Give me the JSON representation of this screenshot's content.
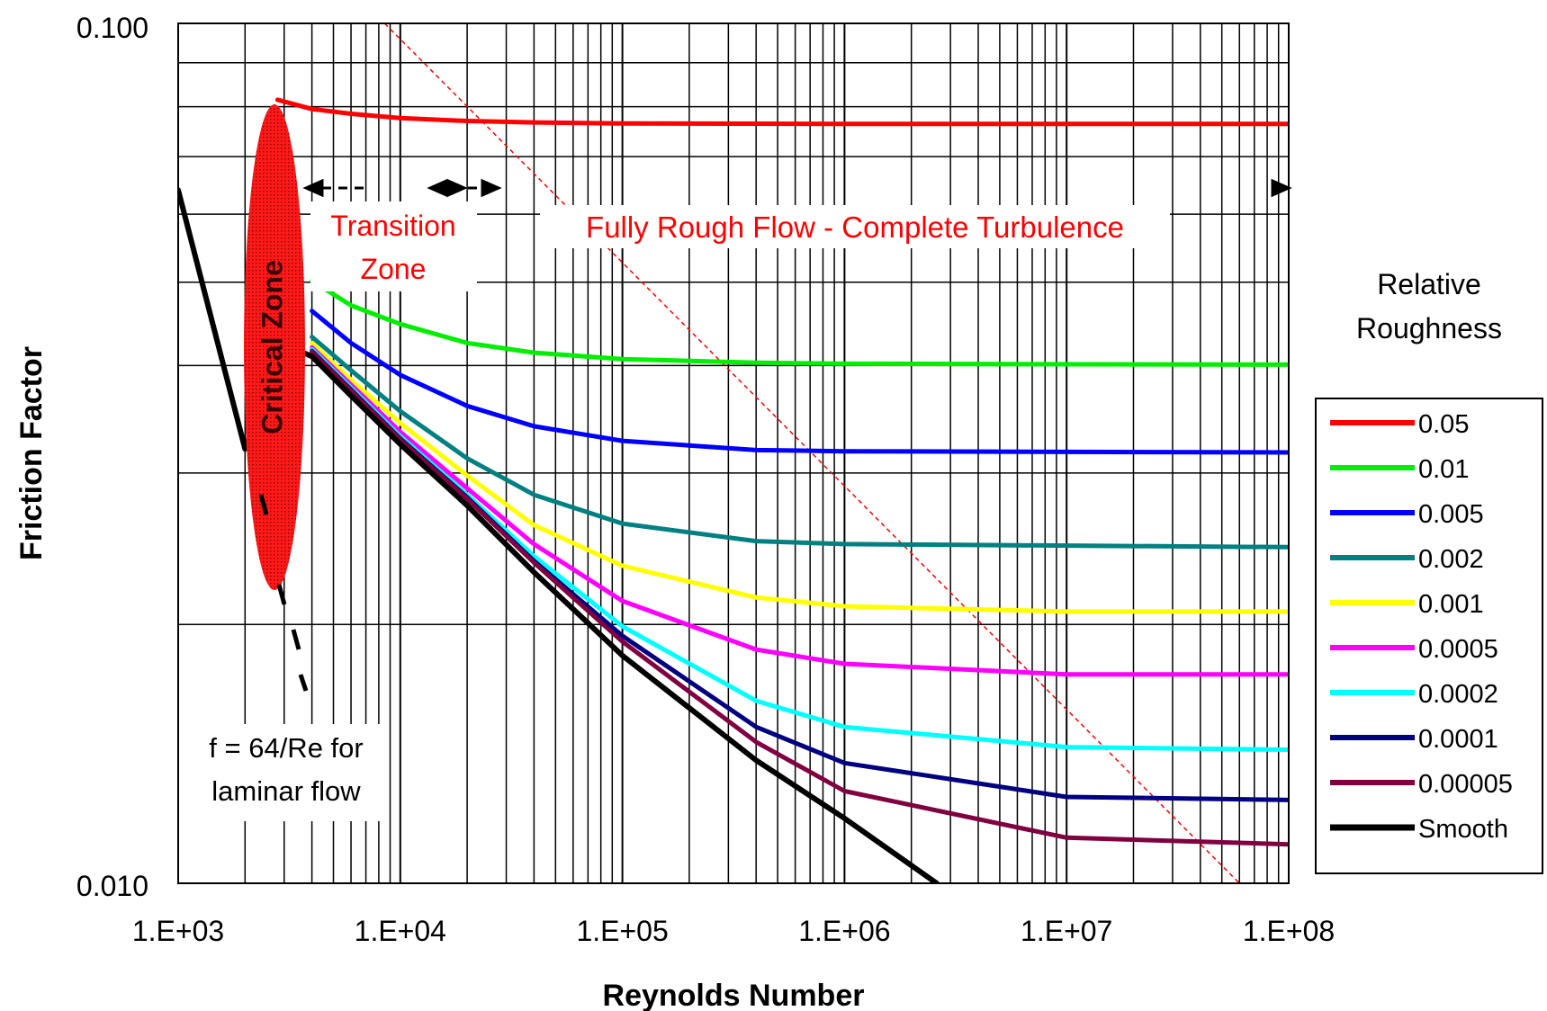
{
  "chart_data": {
    "type": "line",
    "title": "",
    "xlabel": "Reynolds Number",
    "ylabel": "Friction Factor",
    "xscale": "log",
    "yscale": "log",
    "xlim": [
      1000,
      100000000
    ],
    "ylim": [
      0.01,
      0.1
    ],
    "grid": true,
    "x_ticks": [
      "1.E+03",
      "1.E+04",
      "1.E+05",
      "1.E+06",
      "1.E+07",
      "1.E+08"
    ],
    "y_ticks": [
      "0.010",
      "0.100"
    ],
    "legend": {
      "title_line1": "Relative",
      "title_line2": "Roughness",
      "position": "right"
    },
    "annotations": {
      "transition": [
        "Transition",
        "Zone"
      ],
      "fully_rough": "Fully Rough Flow - Complete Turbulence",
      "critical": "Critical Zone",
      "laminar": [
        "f = 64/Re for",
        "laminar flow"
      ]
    },
    "series": [
      {
        "name": "0.05",
        "color": "#ff0000",
        "x": [
          2800,
          4000,
          6000,
          10000,
          20000,
          40000,
          100000,
          1000000,
          100000000
        ],
        "y": [
          0.0815,
          0.0795,
          0.0785,
          0.0776,
          0.077,
          0.0767,
          0.0765,
          0.0764,
          0.0764
        ]
      },
      {
        "name": "0.01",
        "color": "#00ee00",
        "x": [
          4000,
          6000,
          10000,
          20000,
          40000,
          100000,
          400000,
          1000000,
          100000000
        ],
        "y": [
          0.0502,
          0.047,
          0.0447,
          0.0425,
          0.0414,
          0.0407,
          0.0403,
          0.0402,
          0.0401
        ]
      },
      {
        "name": "0.005",
        "color": "#0000ff",
        "x": [
          4000,
          6000,
          10000,
          20000,
          40000,
          100000,
          400000,
          1000000,
          100000000
        ],
        "y": [
          0.0463,
          0.0425,
          0.039,
          0.0359,
          0.034,
          0.0327,
          0.0319,
          0.0318,
          0.0317
        ]
      },
      {
        "name": "0.002",
        "color": "#008080",
        "x": [
          4000,
          6000,
          10000,
          20000,
          40000,
          100000,
          400000,
          1000000,
          100000000
        ],
        "y": [
          0.0432,
          0.0395,
          0.0354,
          0.0312,
          0.0283,
          0.0262,
          0.025,
          0.0248,
          0.0246
        ]
      },
      {
        "name": "0.001",
        "color": "#ffff00",
        "x": [
          4000,
          6000,
          10000,
          20000,
          40000,
          100000,
          400000,
          1000000,
          10000000,
          100000000
        ],
        "y": [
          0.0425,
          0.0385,
          0.0343,
          0.0298,
          0.0261,
          0.0234,
          0.0215,
          0.021,
          0.0207,
          0.0207
        ]
      },
      {
        "name": "0.0005",
        "color": "#ff00ff",
        "x": [
          4000,
          6000,
          10000,
          20000,
          40000,
          100000,
          400000,
          1000000,
          10000000,
          100000000
        ],
        "y": [
          0.042,
          0.038,
          0.0335,
          0.0288,
          0.0248,
          0.0213,
          0.0187,
          0.018,
          0.0175,
          0.0175
        ]
      },
      {
        "name": "0.0002",
        "color": "#00ffff",
        "x": [
          4000,
          6000,
          10000,
          20000,
          40000,
          100000,
          400000,
          1000000,
          10000000,
          100000000
        ],
        "y": [
          0.0418,
          0.0377,
          0.0331,
          0.0283,
          0.024,
          0.0199,
          0.0163,
          0.0152,
          0.0144,
          0.0143
        ]
      },
      {
        "name": "0.0001",
        "color": "#000080",
        "x": [
          4000,
          6000,
          10000,
          20000,
          40000,
          100000,
          400000,
          1000000,
          10000000,
          100000000
        ],
        "y": [
          0.0416,
          0.0375,
          0.0329,
          0.0281,
          0.0237,
          0.0194,
          0.0152,
          0.0138,
          0.0126,
          0.0125
        ]
      },
      {
        "name": "0.00005",
        "color": "#800040",
        "x": [
          4000,
          6000,
          10000,
          20000,
          40000,
          100000,
          400000,
          1000000,
          10000000,
          100000000
        ],
        "y": [
          0.0415,
          0.0374,
          0.0328,
          0.028,
          0.0236,
          0.0191,
          0.0146,
          0.0128,
          0.0113,
          0.0111
        ]
      },
      {
        "name": "Smooth",
        "color": "#000000",
        "x": [
          1000,
          2000,
          2900,
          4000,
          6000,
          10000,
          20000,
          40000,
          100000,
          400000,
          1000000,
          2600000
        ],
        "y": [
          0.064,
          0.032,
          0.0425,
          0.041,
          0.0369,
          0.0324,
          0.0275,
          0.023,
          0.0184,
          0.0139,
          0.0119,
          0.01
        ]
      }
    ]
  }
}
